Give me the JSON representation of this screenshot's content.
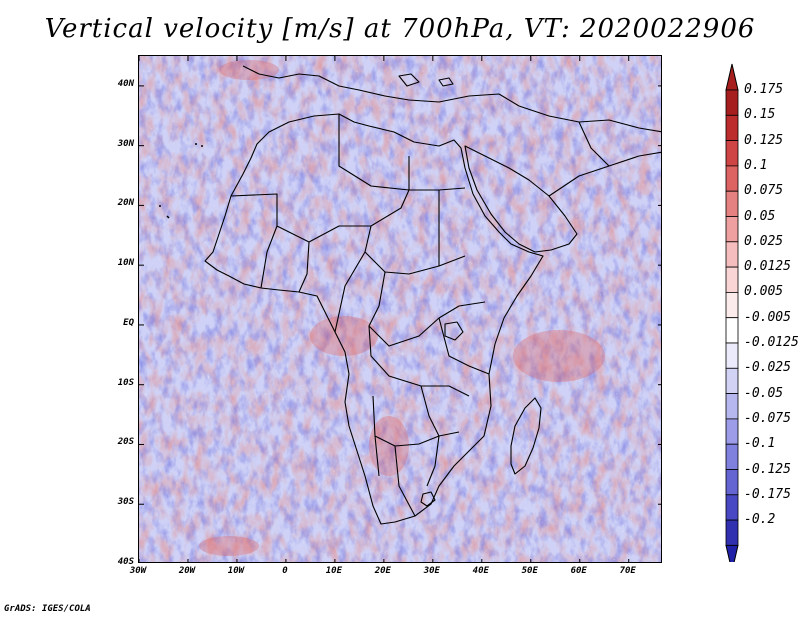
{
  "title": "Vertical velocity [m/s] at 700hPa, VT: 2020022906",
  "footer": "GrADS: IGES/COLA",
  "map": {
    "projection": "lat-lon",
    "lon_range": [
      -30,
      77
    ],
    "lat_range": [
      -40,
      45
    ],
    "lat_ticks": [
      {
        "value": 40,
        "label": "40N"
      },
      {
        "value": 30,
        "label": "30N"
      },
      {
        "value": 20,
        "label": "20N"
      },
      {
        "value": 10,
        "label": "10N"
      },
      {
        "value": 0,
        "label": "EQ"
      },
      {
        "value": -10,
        "label": "10S"
      },
      {
        "value": -20,
        "label": "20S"
      },
      {
        "value": -30,
        "label": "30S"
      },
      {
        "value": -40,
        "label": "40S"
      }
    ],
    "lon_ticks": [
      {
        "value": -30,
        "label": "30W"
      },
      {
        "value": -20,
        "label": "20W"
      },
      {
        "value": -10,
        "label": "10W"
      },
      {
        "value": 0,
        "label": "0"
      },
      {
        "value": 10,
        "label": "10E"
      },
      {
        "value": 20,
        "label": "20E"
      },
      {
        "value": 30,
        "label": "30E"
      },
      {
        "value": 40,
        "label": "40E"
      },
      {
        "value": 50,
        "label": "50E"
      },
      {
        "value": 60,
        "label": "60E"
      },
      {
        "value": 70,
        "label": "70E"
      }
    ]
  },
  "colorbar": {
    "levels": [
      {
        "label": "0.175",
        "color": "#a61e1e"
      },
      {
        "label": "0.15",
        "color": "#bd2c2c"
      },
      {
        "label": "0.125",
        "color": "#cf4444"
      },
      {
        "label": "0.1",
        "color": "#dd6262"
      },
      {
        "label": "0.075",
        "color": "#e68181"
      },
      {
        "label": "0.05",
        "color": "#ee9f9f"
      },
      {
        "label": "0.025",
        "color": "#f5bdbd"
      },
      {
        "label": "0.0125",
        "color": "#f9d5d5"
      },
      {
        "label": "0.005",
        "color": "#fcebeb"
      },
      {
        "label": "-0.005",
        "color": "#ffffff"
      },
      {
        "label": "-0.0125",
        "color": "#ebebfb"
      },
      {
        "label": "-0.025",
        "color": "#d2d2f5"
      },
      {
        "label": "-0.05",
        "color": "#b7b7ef"
      },
      {
        "label": "-0.075",
        "color": "#9c9ce8"
      },
      {
        "label": "-0.1",
        "color": "#8080de"
      },
      {
        "label": "-0.125",
        "color": "#6464d2"
      },
      {
        "label": "-0.175",
        "color": "#4848c4"
      },
      {
        "label": "-0.2",
        "color": "#3030b0"
      }
    ],
    "top_arrow_color": "#a61e1e",
    "bottom_arrow_color": "#2020a8"
  },
  "colors": {
    "background_field": "#cfd2f6",
    "upward_motion": "#e38d8d",
    "downward_motion": "#7e80e2",
    "border_lines": "#000000"
  }
}
